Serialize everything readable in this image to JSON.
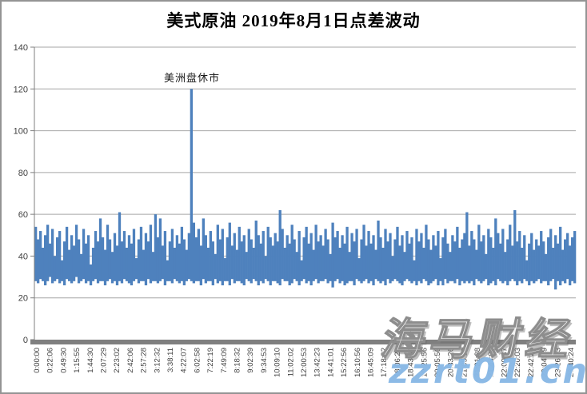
{
  "title": "美式原油 2019年8月1日点差波动",
  "annotation_label": "美洲盘休市",
  "watermark": {
    "brand": "海马财经",
    "site": "zzrt01.cn"
  },
  "colors": {
    "bar": "#4e81bd",
    "grid": "#a6a6a6",
    "axis": "#7f7f7f",
    "tick_label": "#3f3f3f",
    "watermark_blue": "#7cb1e2"
  },
  "chart_data": {
    "type": "bar",
    "title": "美式原油 2019年8月1日点差波动",
    "xlabel": "",
    "ylabel": "",
    "ylim": [
      0,
      140
    ],
    "y_ticks": [
      0,
      20,
      40,
      60,
      80,
      100,
      120,
      140
    ],
    "grid": "horizontal",
    "legend": "none",
    "annotation": {
      "text": "美洲盘休市",
      "value": 120,
      "between_labels": [
        "4:22:07",
        "6:02:58"
      ]
    },
    "x_labels": [
      "0:00:00",
      "0:22:06",
      "0:49:30",
      "1:15:55",
      "1:44:30",
      "2:07:29",
      "2:23:02",
      "2:42:06",
      "2:57:28",
      "3:12:32",
      "3:38:11",
      "4:22:07",
      "6:02:58",
      "7:22:19",
      "7:49:09",
      "8:18:32",
      "9:02:39",
      "9:34:53",
      "10:09:10",
      "11:02:02",
      "12:00:53",
      "13:42:23",
      "14:41:01",
      "15:22:56",
      "16:10:56",
      "16:45:09",
      "17:18:32",
      "18:06:24",
      "18:43:44",
      "19:25:56",
      "20:05:56",
      "20:33:26",
      "21:05:12",
      "21:21:38",
      "21:43:06",
      "22:00:37",
      "22:20:03",
      "22:42:26",
      "23:04:29",
      "23:26:23",
      "23:40:24"
    ],
    "series_note": "spread range per interval [low, high]; typical band 28-55, spike 120 during Americas market break",
    "columns": [
      [
        28,
        54
      ],
      [
        27,
        48
      ],
      [
        29,
        52
      ],
      [
        28,
        44
      ],
      [
        26,
        50
      ],
      [
        28,
        55
      ],
      [
        30,
        46
      ],
      [
        27,
        53
      ],
      [
        28,
        40
      ],
      [
        29,
        49
      ],
      [
        27,
        52
      ],
      [
        28,
        38
      ],
      [
        26,
        47
      ],
      [
        29,
        54
      ],
      [
        28,
        43
      ],
      [
        27,
        50
      ],
      [
        28,
        45
      ],
      [
        30,
        55
      ],
      [
        27,
        48
      ],
      [
        28,
        41
      ],
      [
        29,
        53
      ],
      [
        27,
        46
      ],
      [
        28,
        50
      ],
      [
        26,
        36
      ],
      [
        28,
        44
      ],
      [
        29,
        52
      ],
      [
        27,
        47
      ],
      [
        28,
        58
      ],
      [
        28,
        49
      ],
      [
        26,
        43
      ],
      [
        28,
        55
      ],
      [
        29,
        48
      ],
      [
        27,
        42
      ],
      [
        28,
        51
      ],
      [
        26,
        45
      ],
      [
        28,
        61
      ],
      [
        27,
        47
      ],
      [
        29,
        52
      ],
      [
        28,
        44
      ],
      [
        27,
        50
      ],
      [
        26,
        46
      ],
      [
        28,
        53
      ],
      [
        29,
        39
      ],
      [
        27,
        48
      ],
      [
        28,
        54
      ],
      [
        28,
        43
      ],
      [
        26,
        51
      ],
      [
        29,
        47
      ],
      [
        27,
        55
      ],
      [
        28,
        42
      ],
      [
        28,
        60
      ],
      [
        27,
        49
      ],
      [
        28,
        58
      ],
      [
        29,
        45
      ],
      [
        26,
        52
      ],
      [
        28,
        38
      ],
      [
        28,
        47
      ],
      [
        27,
        53
      ],
      [
        29,
        44
      ],
      [
        28,
        50
      ],
      [
        27,
        46
      ],
      [
        28,
        54
      ],
      [
        26,
        48
      ],
      [
        28,
        43
      ],
      [
        29,
        51
      ],
      [
        28,
        120
      ],
      [
        27,
        56
      ],
      [
        28,
        49
      ],
      [
        28,
        53
      ],
      [
        26,
        45
      ],
      [
        29,
        58
      ],
      [
        27,
        50
      ],
      [
        28,
        44
      ],
      [
        28,
        52
      ],
      [
        26,
        47
      ],
      [
        29,
        41
      ],
      [
        27,
        55
      ],
      [
        28,
        48
      ],
      [
        26,
        53
      ],
      [
        28,
        39
      ],
      [
        28,
        49
      ],
      [
        26,
        56
      ],
      [
        29,
        45
      ],
      [
        27,
        51
      ],
      [
        28,
        43
      ],
      [
        28,
        54
      ],
      [
        27,
        47
      ],
      [
        26,
        50
      ],
      [
        29,
        42
      ],
      [
        28,
        53
      ],
      [
        27,
        48
      ],
      [
        29,
        44
      ],
      [
        28,
        57
      ],
      [
        26,
        50
      ],
      [
        28,
        46
      ],
      [
        27,
        52
      ],
      [
        29,
        40
      ],
      [
        28,
        54
      ],
      [
        26,
        49
      ],
      [
        28,
        45
      ],
      [
        28,
        51
      ],
      [
        27,
        47
      ],
      [
        26,
        62
      ],
      [
        29,
        53
      ],
      [
        28,
        44
      ],
      [
        28,
        50
      ],
      [
        26,
        46
      ],
      [
        27,
        55
      ],
      [
        29,
        48
      ],
      [
        28,
        42
      ],
      [
        26,
        52
      ],
      [
        28,
        38
      ],
      [
        29,
        49
      ],
      [
        27,
        54
      ],
      [
        28,
        46
      ],
      [
        26,
        51
      ],
      [
        28,
        43
      ],
      [
        29,
        55
      ],
      [
        27,
        47
      ],
      [
        28,
        50
      ],
      [
        28,
        45
      ],
      [
        29,
        53
      ],
      [
        27,
        48
      ],
      [
        28,
        41
      ],
      [
        25,
        56
      ],
      [
        28,
        49
      ],
      [
        29,
        52
      ],
      [
        27,
        44
      ],
      [
        28,
        50
      ],
      [
        26,
        46
      ],
      [
        27,
        54
      ],
      [
        28,
        42
      ],
      [
        28,
        51
      ],
      [
        26,
        47
      ],
      [
        29,
        53
      ],
      [
        28,
        39
      ],
      [
        27,
        48
      ],
      [
        28,
        55
      ],
      [
        29,
        45
      ],
      [
        27,
        52
      ],
      [
        28,
        46
      ],
      [
        26,
        50
      ],
      [
        29,
        43
      ],
      [
        28,
        57
      ],
      [
        27,
        49
      ],
      [
        28,
        44
      ],
      [
        26,
        53
      ],
      [
        29,
        47
      ],
      [
        27,
        51
      ],
      [
        28,
        40
      ],
      [
        29,
        48
      ],
      [
        28,
        54
      ],
      [
        27,
        45
      ],
      [
        26,
        50
      ],
      [
        28,
        42
      ],
      [
        29,
        52
      ],
      [
        28,
        46
      ],
      [
        27,
        49
      ],
      [
        28,
        38
      ],
      [
        26,
        53
      ],
      [
        28,
        47
      ],
      [
        27,
        51
      ],
      [
        29,
        44
      ],
      [
        28,
        55
      ],
      [
        26,
        48
      ],
      [
        27,
        43
      ],
      [
        28,
        50
      ],
      [
        29,
        45
      ],
      [
        26,
        52
      ],
      [
        28,
        39
      ],
      [
        26,
        49
      ],
      [
        29,
        53
      ],
      [
        27,
        46
      ],
      [
        28,
        42
      ],
      [
        28,
        50
      ],
      [
        27,
        47
      ],
      [
        29,
        54
      ],
      [
        26,
        44
      ],
      [
        28,
        48
      ],
      [
        27,
        51
      ],
      [
        28,
        61
      ],
      [
        27,
        45
      ],
      [
        28,
        52
      ],
      [
        26,
        48
      ],
      [
        29,
        43
      ],
      [
        28,
        55
      ],
      [
        27,
        47
      ],
      [
        28,
        50
      ],
      [
        29,
        41
      ],
      [
        26,
        53
      ],
      [
        27,
        49
      ],
      [
        28,
        44
      ],
      [
        26,
        58
      ],
      [
        29,
        51
      ],
      [
        28,
        46
      ],
      [
        27,
        53
      ],
      [
        28,
        42
      ],
      [
        26,
        48
      ],
      [
        28,
        55
      ],
      [
        29,
        45
      ],
      [
        28,
        62
      ],
      [
        26,
        47
      ],
      [
        28,
        52
      ],
      [
        27,
        44
      ],
      [
        29,
        50
      ],
      [
        28,
        38
      ],
      [
        26,
        46
      ],
      [
        28,
        51
      ],
      [
        27,
        43
      ],
      [
        28,
        48
      ],
      [
        29,
        45
      ],
      [
        27,
        52
      ],
      [
        28,
        47
      ],
      [
        28,
        41
      ],
      [
        26,
        49
      ],
      [
        28,
        53
      ],
      [
        29,
        44
      ],
      [
        24,
        50
      ],
      [
        28,
        46
      ],
      [
        26,
        54
      ],
      [
        28,
        43
      ],
      [
        27,
        48
      ],
      [
        29,
        51
      ],
      [
        26,
        45
      ],
      [
        28,
        49
      ],
      [
        27,
        52
      ]
    ]
  }
}
